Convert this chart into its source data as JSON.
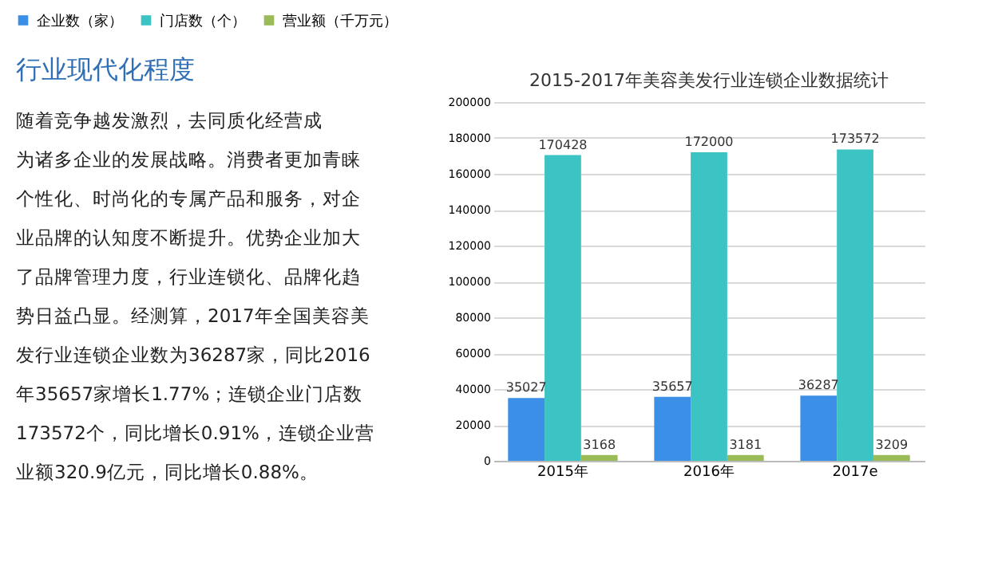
{
  "chart_data": {
    "type": "bar",
    "title": "2015-2017年美容美发行业连锁企业数据统计",
    "categories": [
      "2015年",
      "2016年",
      "2017e"
    ],
    "series": [
      {
        "name": "企业数（家）",
        "color": "#3c8fe6",
        "values": [
          35027,
          35657,
          36287
        ]
      },
      {
        "name": "门店数（个）",
        "color": "#3cc4c4",
        "values": [
          170428,
          172000,
          173572
        ]
      },
      {
        "name": "营业额（千万元）",
        "color": "#9bbb59",
        "values": [
          3168,
          3181,
          3209
        ]
      }
    ],
    "ylim": [
      0,
      200000
    ],
    "yticks": [
      0,
      20000,
      40000,
      60000,
      80000,
      100000,
      120000,
      140000,
      160000,
      180000,
      200000
    ],
    "grid": "y",
    "legend": "top",
    "data_labels": true,
    "annotations": [
      "行业现代化程度",
      "随着竞争越发激烈，去同质化经营成",
      "为诸多企业的发展战略。消费者更加青睐",
      "个性化、时尚化的专属产品和服务，对企",
      "业品牌的认知度不断提升。优势企业加大",
      "了品牌管理力度，行业连锁化、品牌化趋",
      "势日益凸显。经测算，2017年全国美容美",
      "发行业连锁企业数为36287家，同比2016",
      "年35657家增长1.77%；连锁企业门店数",
      "173572个，同比增长0.91%，连锁企业营",
      "业额320.9亿元，同比增长0.88%。"
    ]
  }
}
